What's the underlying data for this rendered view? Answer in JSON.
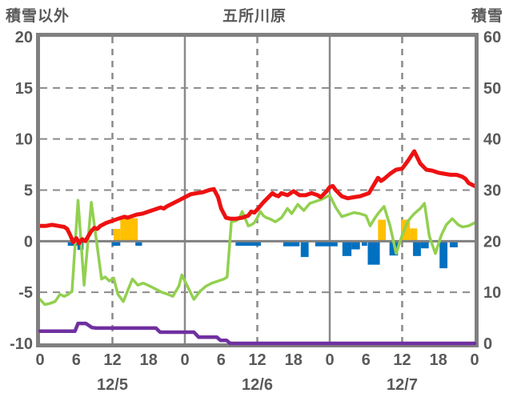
{
  "header": {
    "left_axis_label": "積雪以外",
    "title": "五所川原",
    "right_axis_label": "積雪"
  },
  "colors": {
    "frame": "#808080",
    "grid": "#8a8a8a",
    "text": "#595959",
    "red_line": "#ee1111",
    "green_line": "#92d050",
    "purple_line": "#7030a0",
    "blue_bars": "#0070c0",
    "orange_bars": "#ffc000"
  },
  "chart_data": {
    "type": "line",
    "title": "五所川原",
    "left_axis": {
      "label": "積雪以外",
      "min": -10,
      "max": 20,
      "ticks": [
        20,
        15,
        10,
        5,
        0,
        -5,
        -10
      ]
    },
    "right_axis": {
      "label": "積雪",
      "min": 0,
      "max": 60,
      "ticks": [
        60,
        50,
        40,
        30,
        20,
        10,
        0
      ]
    },
    "x_axis": {
      "total_hours": 72,
      "tick_interval_hours": 6,
      "tick_labels": [
        "0",
        "6",
        "12",
        "18",
        "0",
        "6",
        "12",
        "18",
        "0",
        "6",
        "12",
        "18",
        "0"
      ],
      "day_labels": [
        "12/5",
        "12/6",
        "12/7"
      ],
      "day_label_hours": [
        12,
        36,
        60
      ],
      "solid_gridline_hours": [
        24,
        48
      ],
      "dashed_gridline_hours": [
        12,
        36,
        60
      ]
    },
    "horizontal_dashed_gridlines_left_values": [
      15,
      10,
      5,
      -5
    ],
    "series": [
      {
        "name": "red-line",
        "type": "line",
        "axis": "left",
        "color": "#ee1111",
        "width": 5,
        "points": [
          [
            0,
            1.5
          ],
          [
            1,
            1.5
          ],
          [
            2,
            1.6
          ],
          [
            3,
            1.5
          ],
          [
            4,
            1.4
          ],
          [
            4.5,
            1.2
          ],
          [
            5,
            0.6
          ],
          [
            5.5,
            -0.1
          ],
          [
            6,
            0.3
          ],
          [
            6.5,
            -0.2
          ],
          [
            7,
            0.2
          ],
          [
            7.5,
            0.0
          ],
          [
            8,
            0.5
          ],
          [
            8.5,
            1.0
          ],
          [
            9,
            1.3
          ],
          [
            9.5,
            1.2
          ],
          [
            10,
            1.5
          ],
          [
            11,
            1.8
          ],
          [
            12,
            2.0
          ],
          [
            13,
            2.2
          ],
          [
            14,
            2.4
          ],
          [
            14.5,
            2.3
          ],
          [
            15,
            2.4
          ],
          [
            16,
            2.6
          ],
          [
            17,
            2.7
          ],
          [
            18,
            2.9
          ],
          [
            19,
            3.1
          ],
          [
            20,
            3.3
          ],
          [
            20.5,
            3.2
          ],
          [
            21,
            3.4
          ],
          [
            22,
            3.7
          ],
          [
            23,
            4.0
          ],
          [
            24,
            4.3
          ],
          [
            25,
            4.6
          ],
          [
            26,
            4.7
          ],
          [
            27,
            4.8
          ],
          [
            28,
            5.0
          ],
          [
            28.8,
            5.1
          ],
          [
            29.5,
            4.3
          ],
          [
            30,
            3.2
          ],
          [
            30.8,
            2.3
          ],
          [
            31.5,
            2.2
          ],
          [
            32.5,
            2.2
          ],
          [
            33.5,
            2.3
          ],
          [
            34.5,
            2.5
          ],
          [
            35,
            2.9
          ],
          [
            35.5,
            2.8
          ],
          [
            36,
            3.1
          ],
          [
            37,
            3.8
          ],
          [
            38,
            4.4
          ],
          [
            38.5,
            4.7
          ],
          [
            39,
            4.5
          ],
          [
            39.5,
            4.4
          ],
          [
            40,
            4.7
          ],
          [
            40.5,
            4.6
          ],
          [
            41,
            4.5
          ],
          [
            42,
            4.9
          ],
          [
            42.5,
            4.7
          ],
          [
            43,
            4.5
          ],
          [
            44,
            4.5
          ],
          [
            45,
            4.7
          ],
          [
            46,
            4.5
          ],
          [
            46.5,
            4.3
          ],
          [
            47,
            4.6
          ],
          [
            47.5,
            4.9
          ],
          [
            48,
            5.3
          ],
          [
            48.5,
            5.4
          ],
          [
            49,
            5.0
          ],
          [
            50,
            4.4
          ],
          [
            51,
            4.2
          ],
          [
            52,
            4.3
          ],
          [
            53,
            4.4
          ],
          [
            54,
            4.6
          ],
          [
            54.5,
            4.7
          ],
          [
            55,
            5.2
          ],
          [
            56,
            6.2
          ],
          [
            56.5,
            5.9
          ],
          [
            57,
            6.1
          ],
          [
            58,
            6.6
          ],
          [
            59,
            7.0
          ],
          [
            60,
            7.1
          ],
          [
            61,
            7.9
          ],
          [
            62,
            8.8
          ],
          [
            62.5,
            8.2
          ],
          [
            63,
            7.6
          ],
          [
            64,
            7.0
          ],
          [
            65,
            6.9
          ],
          [
            66,
            6.7
          ],
          [
            67,
            6.6
          ],
          [
            68,
            6.5
          ],
          [
            69,
            6.5
          ],
          [
            70,
            6.3
          ],
          [
            70.5,
            6.1
          ],
          [
            71,
            5.7
          ],
          [
            72,
            5.4
          ]
        ]
      },
      {
        "name": "green-line",
        "type": "line",
        "axis": "left",
        "color": "#92d050",
        "width": 3.5,
        "points": [
          [
            0,
            -5.7
          ],
          [
            0.8,
            -6.2
          ],
          [
            1.6,
            -6.1
          ],
          [
            2.5,
            -5.9
          ],
          [
            3.3,
            -5.2
          ],
          [
            4,
            -5.4
          ],
          [
            4.7,
            -5.2
          ],
          [
            5.3,
            -4.9
          ],
          [
            6.3,
            4.0
          ],
          [
            7.3,
            -4.3
          ],
          [
            8.5,
            3.8
          ],
          [
            10.2,
            -3.7
          ],
          [
            10.8,
            -3.5
          ],
          [
            11.5,
            -3.9
          ],
          [
            12.2,
            -3.6
          ],
          [
            12.9,
            -5.2
          ],
          [
            13.8,
            -5.9
          ],
          [
            15.3,
            -3.7
          ],
          [
            16.2,
            -4.3
          ],
          [
            17.1,
            -4.1
          ],
          [
            18.2,
            -4.4
          ],
          [
            19.2,
            -4.7
          ],
          [
            20.2,
            -5.0
          ],
          [
            21.2,
            -5.2
          ],
          [
            22,
            -5.4
          ],
          [
            23,
            -4.4
          ],
          [
            23.5,
            -3.3
          ],
          [
            24.5,
            -4.5
          ],
          [
            25.5,
            -5.7
          ],
          [
            26.5,
            -4.9
          ],
          [
            27.5,
            -4.4
          ],
          [
            28.5,
            -4.1
          ],
          [
            29.5,
            -3.9
          ],
          [
            30.5,
            -3.7
          ],
          [
            31,
            -3.5
          ],
          [
            31.7,
            1.9
          ],
          [
            32.5,
            2.0
          ],
          [
            33,
            2.2
          ],
          [
            33.5,
            2.9
          ],
          [
            34,
            2.2
          ],
          [
            34.5,
            1.5
          ],
          [
            35,
            1.6
          ],
          [
            35.5,
            1.8
          ],
          [
            36,
            2.3
          ],
          [
            36.5,
            2.9
          ],
          [
            37,
            2.5
          ],
          [
            37.5,
            2.3
          ],
          [
            38,
            2.2
          ],
          [
            39,
            1.9
          ],
          [
            40,
            2.3
          ],
          [
            41,
            3.2
          ],
          [
            41.7,
            2.7
          ],
          [
            42.7,
            3.6
          ],
          [
            43.7,
            3.0
          ],
          [
            44.7,
            3.7
          ],
          [
            45.7,
            3.9
          ],
          [
            46.7,
            4.1
          ],
          [
            48,
            4.5
          ],
          [
            49,
            3.3
          ],
          [
            50,
            2.4
          ],
          [
            51,
            2.6
          ],
          [
            52,
            2.8
          ],
          [
            53,
            2.7
          ],
          [
            54,
            2.5
          ],
          [
            54.7,
            1.5
          ],
          [
            55.3,
            2.1
          ],
          [
            56,
            2.7
          ],
          [
            57,
            3.4
          ],
          [
            58,
            1.5
          ],
          [
            59,
            -1.2
          ],
          [
            60,
            0.6
          ],
          [
            61,
            2.0
          ],
          [
            62,
            2.7
          ],
          [
            63,
            3.2
          ],
          [
            63.7,
            3.7
          ],
          [
            64.5,
            0.5
          ],
          [
            65.5,
            -1.2
          ],
          [
            66.5,
            0.6
          ],
          [
            67.3,
            1.6
          ],
          [
            68.3,
            2.2
          ],
          [
            69.3,
            1.6
          ],
          [
            70,
            1.4
          ],
          [
            71,
            1.5
          ],
          [
            72,
            1.8
          ]
        ]
      },
      {
        "name": "purple-line",
        "type": "line",
        "axis": "right",
        "color": "#7030a0",
        "width": 4.5,
        "points": [
          [
            0,
            2.4
          ],
          [
            5.8,
            2.4
          ],
          [
            6.3,
            3.9
          ],
          [
            7.6,
            3.9
          ],
          [
            8.6,
            3.1
          ],
          [
            9.3,
            3.0
          ],
          [
            19.2,
            3.0
          ],
          [
            19.9,
            2.2
          ],
          [
            25.5,
            2.2
          ],
          [
            26.3,
            1.2
          ],
          [
            29.3,
            1.2
          ],
          [
            29.9,
            0.6
          ],
          [
            30.9,
            0.6
          ],
          [
            31.5,
            0
          ],
          [
            72,
            0
          ]
        ]
      },
      {
        "name": "blue-bars",
        "type": "bars-down",
        "axis": "left",
        "color": "#0070c0",
        "bars": [
          [
            4.6,
            6.2,
            0.45
          ],
          [
            6.2,
            7.2,
            0.85
          ],
          [
            11.9,
            13.3,
            0.45
          ],
          [
            15.8,
            16.9,
            0.45
          ],
          [
            32.4,
            36.6,
            0.45
          ],
          [
            40.3,
            43.0,
            0.5
          ],
          [
            43.2,
            44.5,
            1.55
          ],
          [
            45.6,
            49.3,
            0.5
          ],
          [
            50.1,
            51.6,
            1.45
          ],
          [
            51.6,
            53.0,
            0.8
          ],
          [
            53.3,
            54.2,
            0.45
          ],
          [
            54.3,
            56.3,
            2.3
          ],
          [
            57.9,
            59.3,
            1.4
          ],
          [
            61.8,
            63.1,
            1.45
          ],
          [
            63.1,
            64.4,
            0.7
          ],
          [
            66.2,
            67.5,
            2.65
          ],
          [
            67.9,
            69.2,
            0.6
          ]
        ]
      },
      {
        "name": "orange-bars",
        "type": "bars-up",
        "axis": "left",
        "color": "#ffc000",
        "bars": [
          [
            12.2,
            13.3,
            1.2
          ],
          [
            13.3,
            16.2,
            2.25
          ],
          [
            56.0,
            57.3,
            2.1
          ],
          [
            59.8,
            61.3,
            2.1
          ],
          [
            61.3,
            62.5,
            1.25
          ]
        ]
      }
    ]
  }
}
